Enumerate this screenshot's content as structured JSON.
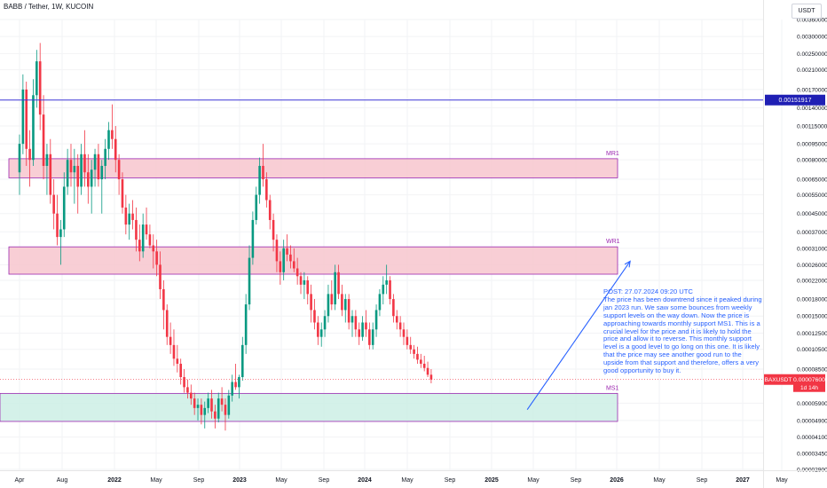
{
  "header": {
    "title": "BABB / Tether, 1W, KUCOIN",
    "unit": "USDT"
  },
  "chart_data": {
    "type": "candlestick",
    "symbol": "BAXUSDT",
    "timeframe": "1W",
    "exchange": "KUCOIN",
    "yscale": "log",
    "ylim": [
      2.82e-05,
      0.0036
    ],
    "y_ticks": [
      "0.00360000",
      "0.00300000",
      "0.00250000",
      "0.00210000",
      "0.00170000",
      "0.00140000",
      "0.00115000",
      "0.00095000",
      "0.00080000",
      "0.00065000",
      "0.00055000",
      "0.00045000",
      "0.00037000",
      "0.00031000",
      "0.00026000",
      "0.00022000",
      "0.00018000",
      "0.00015000",
      "0.00012500",
      "0.00010500",
      "0.00008500",
      "0.00005900",
      "0.00004900",
      "0.00004100",
      "0.00003450",
      "0.00002900"
    ],
    "x_ticks": [
      "Apr",
      "Aug",
      "2022",
      "May",
      "Sep",
      "2023",
      "May",
      "Sep",
      "2024",
      "May",
      "Sep",
      "2025",
      "May",
      "Sep",
      "2026",
      "May",
      "Sep",
      "2027",
      "May"
    ],
    "current_price": {
      "label": "BAXUSDT",
      "value": "0.00007600",
      "countdown": "1d 14h",
      "color": "#f23645"
    },
    "level_line": {
      "value": "0.00151917",
      "color": "#3d36d6"
    },
    "zones": [
      {
        "label": "MR1",
        "low": 0.00066,
        "high": 0.00081,
        "color": "#f7c6ce",
        "border": "#9c27b0"
      },
      {
        "label": "WR1",
        "low": 0.000235,
        "high": 0.000315,
        "color": "#f7c6ce",
        "border": "#9c27b0"
      },
      {
        "label": "MS1",
        "low": 4.85e-05,
        "high": 6.55e-05,
        "color": "#cdeee5",
        "border": "#9c27b0"
      }
    ],
    "candles": [
      {
        "t": 0,
        "o": 0.0007,
        "h": 0.00105,
        "l": 0.00055,
        "c": 0.00095
      },
      {
        "t": 1,
        "o": 0.00095,
        "h": 0.002,
        "l": 0.00085,
        "c": 0.0017
      },
      {
        "t": 2,
        "o": 0.0017,
        "h": 0.00185,
        "l": 0.00075,
        "c": 0.0009
      },
      {
        "t": 3,
        "o": 0.0009,
        "h": 0.0011,
        "l": 0.0006,
        "c": 0.0008
      },
      {
        "t": 4,
        "o": 0.0008,
        "h": 0.0019,
        "l": 0.00075,
        "c": 0.0016
      },
      {
        "t": 5,
        "o": 0.0016,
        "h": 0.0026,
        "l": 0.0014,
        "c": 0.0023
      },
      {
        "t": 6,
        "o": 0.0023,
        "h": 0.0028,
        "l": 0.0011,
        "c": 0.0013
      },
      {
        "t": 7,
        "o": 0.0013,
        "h": 0.0016,
        "l": 0.00065,
        "c": 0.00075
      },
      {
        "t": 8,
        "o": 0.00075,
        "h": 0.00095,
        "l": 0.00055,
        "c": 0.00085
      },
      {
        "t": 9,
        "o": 0.00085,
        "h": 0.001,
        "l": 0.0005,
        "c": 0.00055
      },
      {
        "t": 10,
        "o": 0.00055,
        "h": 0.00065,
        "l": 0.00038,
        "c": 0.00045
      },
      {
        "t": 11,
        "o": 0.00045,
        "h": 0.00055,
        "l": 0.00032,
        "c": 0.00035
      },
      {
        "t": 12,
        "o": 0.00035,
        "h": 0.00042,
        "l": 0.00026,
        "c": 0.00038
      },
      {
        "t": 13,
        "o": 0.00038,
        "h": 0.0007,
        "l": 0.00035,
        "c": 0.0006
      },
      {
        "t": 14,
        "o": 0.0006,
        "h": 0.0009,
        "l": 0.00055,
        "c": 0.0008
      },
      {
        "t": 15,
        "o": 0.0008,
        "h": 0.00095,
        "l": 0.0006,
        "c": 0.0007
      },
      {
        "t": 16,
        "o": 0.0007,
        "h": 0.0009,
        "l": 0.0005,
        "c": 0.00075
      },
      {
        "t": 17,
        "o": 0.00075,
        "h": 0.00085,
        "l": 0.00045,
        "c": 0.0006
      },
      {
        "t": 18,
        "o": 0.0006,
        "h": 0.00095,
        "l": 0.00055,
        "c": 0.00085
      },
      {
        "t": 19,
        "o": 0.00085,
        "h": 0.0011,
        "l": 0.0006,
        "c": 0.0007
      },
      {
        "t": 20,
        "o": 0.0007,
        "h": 0.00085,
        "l": 0.0005,
        "c": 0.0006
      },
      {
        "t": 21,
        "o": 0.0006,
        "h": 0.0008,
        "l": 0.00045,
        "c": 0.00072
      },
      {
        "t": 22,
        "o": 0.00072,
        "h": 0.0009,
        "l": 0.0006,
        "c": 0.00085
      },
      {
        "t": 23,
        "o": 0.00085,
        "h": 0.00095,
        "l": 0.0006,
        "c": 0.00065
      },
      {
        "t": 24,
        "o": 0.00065,
        "h": 0.0008,
        "l": 0.00045,
        "c": 0.00075
      },
      {
        "t": 25,
        "o": 0.00075,
        "h": 0.001,
        "l": 0.00065,
        "c": 0.0009
      },
      {
        "t": 26,
        "o": 0.0009,
        "h": 0.0012,
        "l": 0.0008,
        "c": 0.0011
      },
      {
        "t": 27,
        "o": 0.0011,
        "h": 0.00145,
        "l": 0.0009,
        "c": 0.001
      },
      {
        "t": 28,
        "o": 0.001,
        "h": 0.00115,
        "l": 0.0007,
        "c": 0.0008
      },
      {
        "t": 29,
        "o": 0.0008,
        "h": 0.00085,
        "l": 0.00055,
        "c": 0.00065
      },
      {
        "t": 30,
        "o": 0.00065,
        "h": 0.0007,
        "l": 0.00045,
        "c": 0.00048
      },
      {
        "t": 31,
        "o": 0.00048,
        "h": 0.00055,
        "l": 0.00036,
        "c": 0.0004
      },
      {
        "t": 32,
        "o": 0.0004,
        "h": 0.0005,
        "l": 0.00034,
        "c": 0.00045
      },
      {
        "t": 33,
        "o": 0.00045,
        "h": 0.00052,
        "l": 0.00038,
        "c": 0.00042
      },
      {
        "t": 34,
        "o": 0.00042,
        "h": 0.00048,
        "l": 0.0003,
        "c": 0.00034
      },
      {
        "t": 35,
        "o": 0.00034,
        "h": 0.0004,
        "l": 0.00027,
        "c": 0.0003
      },
      {
        "t": 36,
        "o": 0.0003,
        "h": 0.00045,
        "l": 0.00028,
        "c": 0.0004
      },
      {
        "t": 37,
        "o": 0.0004,
        "h": 0.00048,
        "l": 0.00034,
        "c": 0.00036
      },
      {
        "t": 38,
        "o": 0.00036,
        "h": 0.0004,
        "l": 0.00031,
        "c": 0.00032
      },
      {
        "t": 39,
        "o": 0.00032,
        "h": 0.00036,
        "l": 0.00025,
        "c": 0.0003
      },
      {
        "t": 40,
        "o": 0.0003,
        "h": 0.00034,
        "l": 0.00023,
        "c": 0.00026
      },
      {
        "t": 41,
        "o": 0.00026,
        "h": 0.0003,
        "l": 0.00018,
        "c": 0.0002
      },
      {
        "t": 42,
        "o": 0.0002,
        "h": 0.00022,
        "l": 0.00013,
        "c": 0.00016
      },
      {
        "t": 43,
        "o": 0.00016,
        "h": 0.00017,
        "l": 0.00011,
        "c": 0.00012
      },
      {
        "t": 44,
        "o": 0.00012,
        "h": 0.00014,
        "l": 0.0001,
        "c": 0.00011
      },
      {
        "t": 45,
        "o": 0.00011,
        "h": 0.00013,
        "l": 8.8e-05,
        "c": 9.5e-05
      },
      {
        "t": 46,
        "o": 9.5e-05,
        "h": 0.00011,
        "l": 8.2e-05,
        "c": 9e-05
      },
      {
        "t": 47,
        "o": 9e-05,
        "h": 9.5e-05,
        "l": 7.2e-05,
        "c": 7.8e-05
      },
      {
        "t": 48,
        "o": 7.8e-05,
        "h": 8.5e-05,
        "l": 6.6e-05,
        "c": 7e-05
      },
      {
        "t": 49,
        "o": 7e-05,
        "h": 7.6e-05,
        "l": 6.2e-05,
        "c": 6.6e-05
      },
      {
        "t": 50,
        "o": 6.6e-05,
        "h": 7.2e-05,
        "l": 5.8e-05,
        "c": 6.2e-05
      },
      {
        "t": 51,
        "o": 6.2e-05,
        "h": 6.6e-05,
        "l": 5.2e-05,
        "c": 5.6e-05
      },
      {
        "t": 52,
        "o": 5.6e-05,
        "h": 6.2e-05,
        "l": 4.9e-05,
        "c": 5.8e-05
      },
      {
        "t": 53,
        "o": 5.8e-05,
        "h": 6.2e-05,
        "l": 4.7e-05,
        "c": 5.2e-05
      },
      {
        "t": 54,
        "o": 5.2e-05,
        "h": 6e-05,
        "l": 4.5e-05,
        "c": 5.6e-05
      },
      {
        "t": 55,
        "o": 5.6e-05,
        "h": 6.6e-05,
        "l": 5.3e-05,
        "c": 6.2e-05
      },
      {
        "t": 56,
        "o": 6.2e-05,
        "h": 6.8e-05,
        "l": 5e-05,
        "c": 5.4e-05
      },
      {
        "t": 57,
        "o": 5.4e-05,
        "h": 5.8e-05,
        "l": 4.5e-05,
        "c": 5e-05
      },
      {
        "t": 58,
        "o": 5e-05,
        "h": 6.6e-05,
        "l": 4.8e-05,
        "c": 6.2e-05
      },
      {
        "t": 59,
        "o": 6.2e-05,
        "h": 7e-05,
        "l": 5.4e-05,
        "c": 5.8e-05
      },
      {
        "t": 60,
        "o": 5.8e-05,
        "h": 6.2e-05,
        "l": 4.4e-05,
        "c": 5.2e-05
      },
      {
        "t": 61,
        "o": 5.2e-05,
        "h": 6.8e-05,
        "l": 5e-05,
        "c": 6.4e-05
      },
      {
        "t": 62,
        "o": 6.4e-05,
        "h": 8e-05,
        "l": 6e-05,
        "c": 7.4e-05
      },
      {
        "t": 63,
        "o": 7.4e-05,
        "h": 9e-05,
        "l": 6.8e-05,
        "c": 7e-05
      },
      {
        "t": 64,
        "o": 7e-05,
        "h": 8e-05,
        "l": 6.2e-05,
        "c": 7.8e-05
      },
      {
        "t": 65,
        "o": 7.8e-05,
        "h": 0.00012,
        "l": 7.5e-05,
        "c": 0.00011
      },
      {
        "t": 66,
        "o": 0.00011,
        "h": 0.00019,
        "l": 0.0001,
        "c": 0.00017
      },
      {
        "t": 67,
        "o": 0.00017,
        "h": 0.00032,
        "l": 0.00016,
        "c": 0.00028
      },
      {
        "t": 68,
        "o": 0.00028,
        "h": 0.00046,
        "l": 0.00026,
        "c": 0.00042
      },
      {
        "t": 69,
        "o": 0.00042,
        "h": 0.0006,
        "l": 0.0004,
        "c": 0.00055
      },
      {
        "t": 70,
        "o": 0.00055,
        "h": 0.00082,
        "l": 0.0005,
        "c": 0.00075
      },
      {
        "t": 71,
        "o": 0.00075,
        "h": 0.00095,
        "l": 0.0006,
        "c": 0.00065
      },
      {
        "t": 72,
        "o": 0.00065,
        "h": 0.0007,
        "l": 0.00048,
        "c": 0.00052
      },
      {
        "t": 73,
        "o": 0.00052,
        "h": 0.00055,
        "l": 0.00038,
        "c": 0.00042
      },
      {
        "t": 74,
        "o": 0.00042,
        "h": 0.00045,
        "l": 0.0003,
        "c": 0.00034
      },
      {
        "t": 75,
        "o": 0.00034,
        "h": 0.00036,
        "l": 0.00024,
        "c": 0.00027
      },
      {
        "t": 76,
        "o": 0.00027,
        "h": 0.0003,
        "l": 0.00021,
        "c": 0.00024
      },
      {
        "t": 77,
        "o": 0.00024,
        "h": 0.00034,
        "l": 0.00022,
        "c": 0.00031
      },
      {
        "t": 78,
        "o": 0.00031,
        "h": 0.00036,
        "l": 0.00027,
        "c": 0.00029
      },
      {
        "t": 79,
        "o": 0.00029,
        "h": 0.00032,
        "l": 0.00025,
        "c": 0.00027
      },
      {
        "t": 80,
        "o": 0.00027,
        "h": 0.00031,
        "l": 0.00024,
        "c": 0.00025
      },
      {
        "t": 81,
        "o": 0.00025,
        "h": 0.00028,
        "l": 0.00021,
        "c": 0.00023
      },
      {
        "t": 82,
        "o": 0.00023,
        "h": 0.00024,
        "l": 0.00019,
        "c": 0.00021
      },
      {
        "t": 83,
        "o": 0.00021,
        "h": 0.00024,
        "l": 0.00018,
        "c": 0.00022
      },
      {
        "t": 84,
        "o": 0.00022,
        "h": 0.00023,
        "l": 0.00017,
        "c": 0.00019
      },
      {
        "t": 85,
        "o": 0.00019,
        "h": 0.00021,
        "l": 0.00014,
        "c": 0.00016
      },
      {
        "t": 86,
        "o": 0.00016,
        "h": 0.00018,
        "l": 0.00013,
        "c": 0.00014
      },
      {
        "t": 87,
        "o": 0.00014,
        "h": 0.00015,
        "l": 0.00011,
        "c": 0.00012
      },
      {
        "t": 88,
        "o": 0.00012,
        "h": 0.00014,
        "l": 0.000108,
        "c": 0.00013
      },
      {
        "t": 89,
        "o": 0.00013,
        "h": 0.00016,
        "l": 0.00012,
        "c": 0.00015
      },
      {
        "t": 90,
        "o": 0.00015,
        "h": 0.00021,
        "l": 0.00014,
        "c": 0.00019
      },
      {
        "t": 91,
        "o": 0.00019,
        "h": 0.00022,
        "l": 0.00016,
        "c": 0.00017
      },
      {
        "t": 92,
        "o": 0.00017,
        "h": 0.00026,
        "l": 0.00016,
        "c": 0.00024
      },
      {
        "t": 93,
        "o": 0.00024,
        "h": 0.00026,
        "l": 0.00018,
        "c": 0.00019
      },
      {
        "t": 94,
        "o": 0.00019,
        "h": 0.00021,
        "l": 0.00015,
        "c": 0.00016
      },
      {
        "t": 95,
        "o": 0.00016,
        "h": 0.00019,
        "l": 0.00014,
        "c": 0.00018
      },
      {
        "t": 96,
        "o": 0.00018,
        "h": 0.00019,
        "l": 0.00013,
        "c": 0.00014
      },
      {
        "t": 97,
        "o": 0.00014,
        "h": 0.00016,
        "l": 0.00012,
        "c": 0.00015
      },
      {
        "t": 98,
        "o": 0.00015,
        "h": 0.00016,
        "l": 0.00012,
        "c": 0.00013
      },
      {
        "t": 99,
        "o": 0.00013,
        "h": 0.00014,
        "l": 0.00011,
        "c": 0.00012
      },
      {
        "t": 100,
        "o": 0.00012,
        "h": 0.00015,
        "l": 0.000115,
        "c": 0.00014
      },
      {
        "t": 101,
        "o": 0.00014,
        "h": 0.00016,
        "l": 0.00012,
        "c": 0.00013
      },
      {
        "t": 102,
        "o": 0.00013,
        "h": 0.00014,
        "l": 0.000105,
        "c": 0.00011
      },
      {
        "t": 103,
        "o": 0.00011,
        "h": 0.00014,
        "l": 0.000105,
        "c": 0.00013
      },
      {
        "t": 104,
        "o": 0.00013,
        "h": 0.00017,
        "l": 0.00012,
        "c": 0.00016
      },
      {
        "t": 105,
        "o": 0.00016,
        "h": 0.0002,
        "l": 0.00015,
        "c": 0.00019
      },
      {
        "t": 106,
        "o": 0.00019,
        "h": 0.00023,
        "l": 0.00017,
        "c": 0.00021
      },
      {
        "t": 107,
        "o": 0.00021,
        "h": 0.00026,
        "l": 0.00019,
        "c": 0.00022
      },
      {
        "t": 108,
        "o": 0.00022,
        "h": 0.00023,
        "l": 0.00017,
        "c": 0.00018
      },
      {
        "t": 109,
        "o": 0.00018,
        "h": 0.00019,
        "l": 0.00014,
        "c": 0.00015
      },
      {
        "t": 110,
        "o": 0.00015,
        "h": 0.00016,
        "l": 0.00013,
        "c": 0.00014
      },
      {
        "t": 111,
        "o": 0.00014,
        "h": 0.00015,
        "l": 0.00012,
        "c": 0.00013
      },
      {
        "t": 112,
        "o": 0.00013,
        "h": 0.00014,
        "l": 0.00011,
        "c": 0.00012
      },
      {
        "t": 113,
        "o": 0.00012,
        "h": 0.00013,
        "l": 0.000105,
        "c": 0.00011
      },
      {
        "t": 114,
        "o": 0.00011,
        "h": 0.00012,
        "l": 0.0001,
        "c": 0.000105
      },
      {
        "t": 115,
        "o": 0.000105,
        "h": 0.00011,
        "l": 9.5e-05,
        "c": 0.0001
      },
      {
        "t": 116,
        "o": 0.0001,
        "h": 0.000108,
        "l": 9e-05,
        "c": 9.4e-05
      },
      {
        "t": 117,
        "o": 9.4e-05,
        "h": 0.0001,
        "l": 8.6e-05,
        "c": 9e-05
      },
      {
        "t": 118,
        "o": 9e-05,
        "h": 9.8e-05,
        "l": 8.3e-05,
        "c": 8.6e-05
      },
      {
        "t": 119,
        "o": 8.6e-05,
        "h": 9.2e-05,
        "l": 7.8e-05,
        "c": 8e-05
      },
      {
        "t": 120,
        "o": 8e-05,
        "h": 8.5e-05,
        "l": 7.3e-05,
        "c": 7.6e-05
      }
    ],
    "arrow": {
      "from": {
        "t": 148,
        "y": 5.5e-05
      },
      "to": {
        "t": 178,
        "y": 0.00027
      }
    },
    "annotation": "POST: 27.07.2024 09:20 UTC\nThe price has been downtrend since it peaked during jan 2023 run. We saw some bounces from weekly support levels on the way down. Now the price is approaching towards monthly support MS1. This is a crucial level for the price and it is likely to hold the price and allow it to reverse. This monthly support level is a good level to go long on this one. It is likely that the price may see another good run to the upside from that support and therefore, offers a very good opportunity to buy it."
  }
}
